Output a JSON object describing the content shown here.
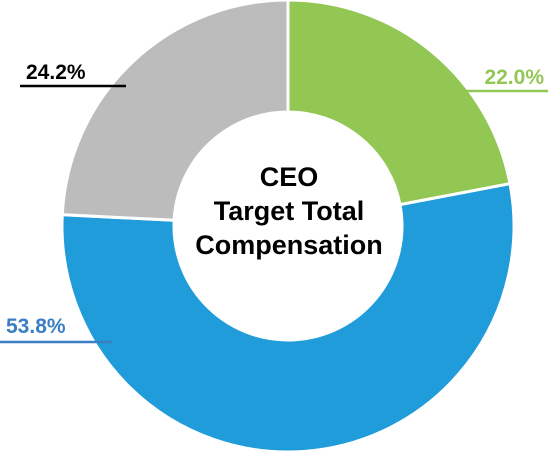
{
  "chart_data": {
    "type": "pie",
    "style": "donut",
    "center_title_lines": [
      "CEO",
      "Target Total",
      "Compensation"
    ],
    "slices": [
      {
        "label": "22.0%",
        "value": 22.0,
        "color": "#92c754",
        "label_color": "#92c754"
      },
      {
        "label": "53.8%",
        "value": 53.8,
        "color": "#1f9cd9",
        "label_color": "#3a7fc1"
      },
      {
        "label": "24.2%",
        "value": 24.2,
        "color": "#bdbcbc",
        "label_color": "#000000"
      }
    ],
    "start": "12 o'clock",
    "direction": "clockwise"
  }
}
